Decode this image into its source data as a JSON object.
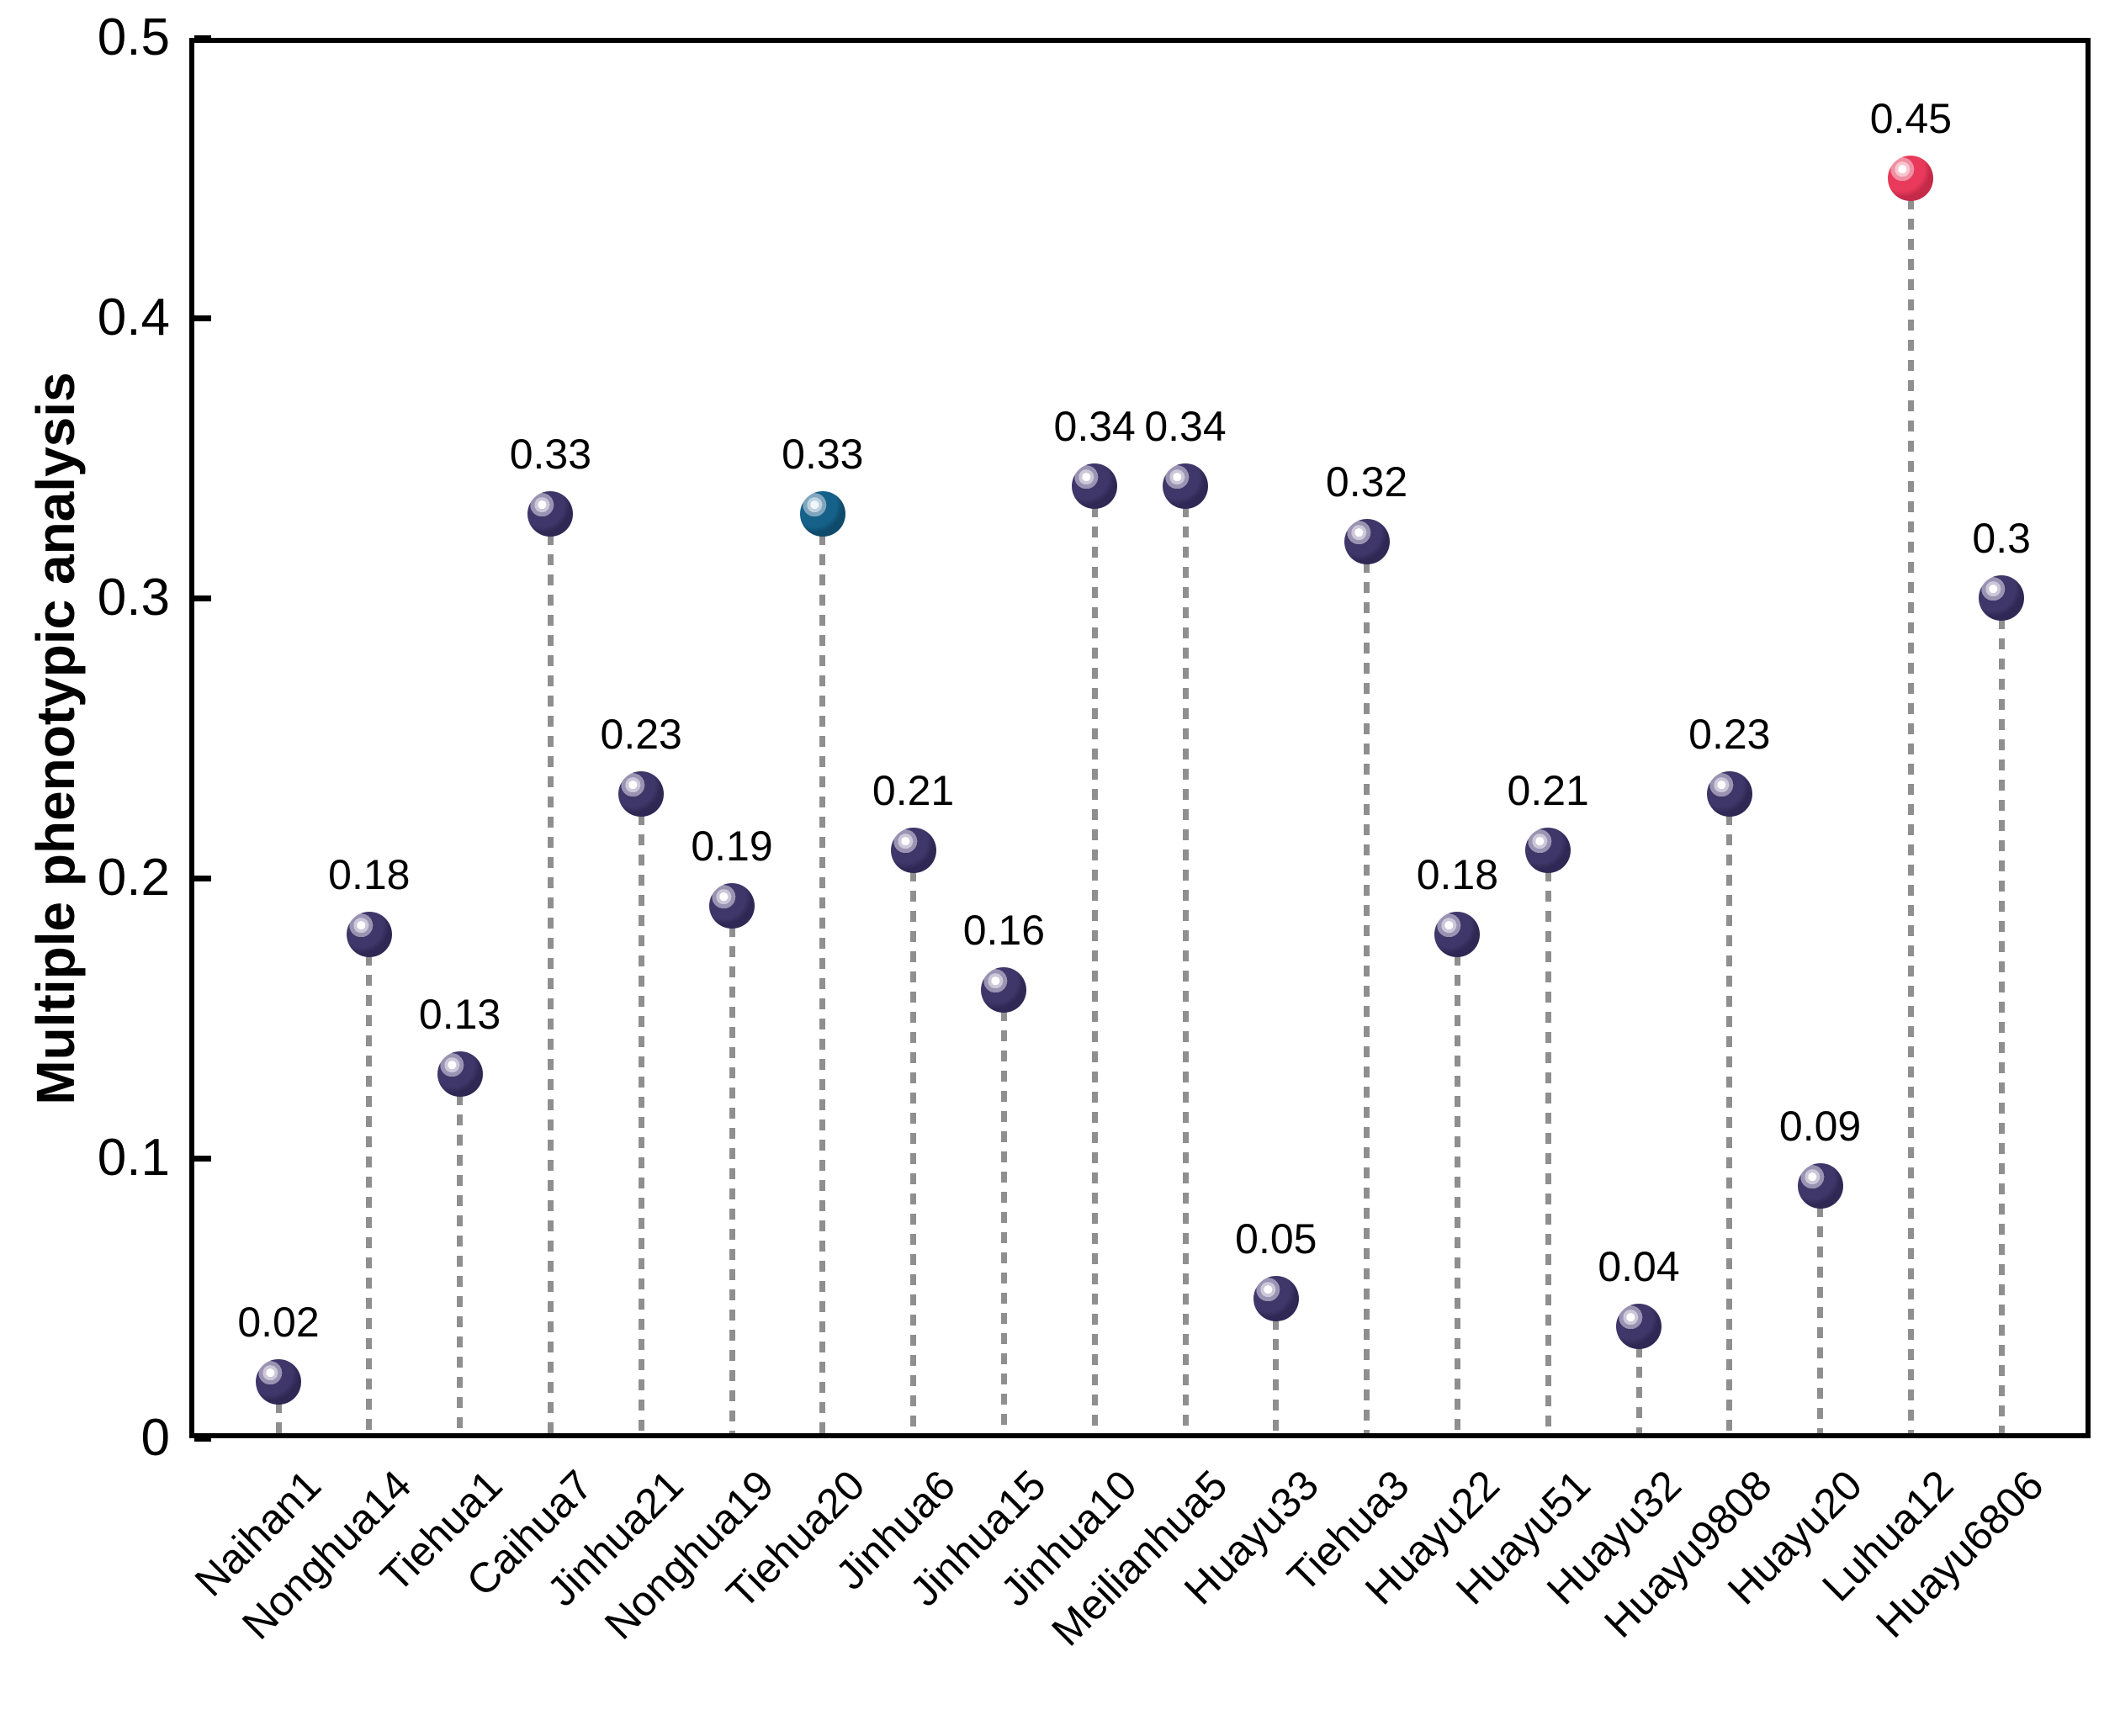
{
  "chart_data": {
    "type": "scatter",
    "subtype": "lollipop",
    "title": "",
    "xlabel": "",
    "ylabel": "Multiple phenotypic analysis",
    "ylim": [
      0,
      0.5
    ],
    "yticks": [
      0,
      0.1,
      0.2,
      0.3,
      0.4,
      0.5
    ],
    "ytick_labels": [
      "0",
      "0.1",
      "0.2",
      "0.3",
      "0.4",
      "0.5"
    ],
    "grid": false,
    "legend": "none",
    "categories": [
      "Naihan1",
      "Nonghua14",
      "Tiehua1",
      "Caihua7",
      "Jinhua21",
      "Nonghua19",
      "Tiehua20",
      "Jinhua6",
      "Jinhua15",
      "Jinhua10",
      "Meilianhua5",
      "Huayu33",
      "Tiehua3",
      "Huayu22",
      "Huayu51",
      "Huayu32",
      "Huayu9808",
      "Huayu20",
      "Luhua12",
      "Huayu6806"
    ],
    "values": [
      0.02,
      0.18,
      0.13,
      0.33,
      0.23,
      0.19,
      0.33,
      0.21,
      0.16,
      0.34,
      0.34,
      0.05,
      0.32,
      0.18,
      0.21,
      0.04,
      0.23,
      0.09,
      0.45,
      0.3
    ],
    "value_labels": [
      "0.02",
      "0.18",
      "0.13",
      "0.33",
      "0.23",
      "0.19",
      "0.33",
      "0.21",
      "0.16",
      "0.34",
      "0.34",
      "0.05",
      "0.32",
      "0.18",
      "0.21",
      "0.04",
      "0.23",
      "0.09",
      "0.45",
      "0.3"
    ],
    "point_palette": [
      "navy",
      "navy",
      "navy",
      "navy",
      "navy",
      "navy",
      "teal",
      "navy",
      "navy",
      "navy",
      "navy",
      "navy",
      "navy",
      "navy",
      "navy",
      "navy",
      "navy",
      "navy",
      "red",
      "navy"
    ]
  },
  "style": {
    "background": "#FFFFFF",
    "axis_color": "#000000",
    "text_color": "#000000",
    "stem_color": "#8F8F8F",
    "palettes": {
      "navy": {
        "body": "#3F3769",
        "dark": "#2F2854",
        "ring1": "#9A93B2",
        "ring2": "#CCC7D9",
        "core": "#FFFFFF"
      },
      "teal": {
        "body": "#15618A",
        "dark": "#0F4A6B",
        "ring1": "#7FA6BE",
        "ring2": "#BDD2DE",
        "core": "#F0F6F9"
      },
      "red": {
        "body": "#E93A5B",
        "dark": "#C52A48",
        "ring1": "#F18FA3",
        "ring2": "#F9C6D0",
        "core": "#FFFFFF"
      }
    }
  }
}
